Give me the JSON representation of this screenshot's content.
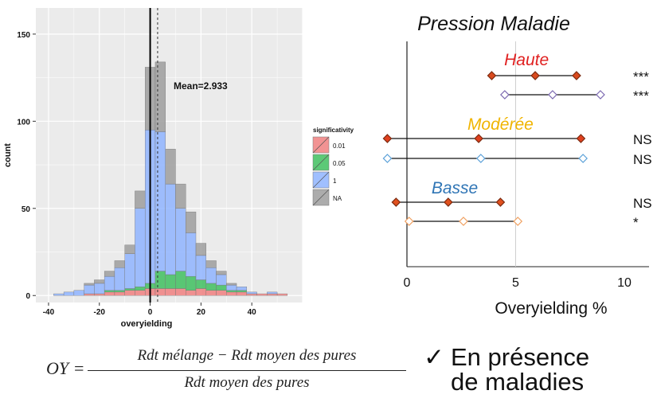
{
  "chart_data": [
    {
      "type": "histogram",
      "xlabel": "overyielding",
      "ylabel": "count",
      "xlim": [
        -45,
        60
      ],
      "ylim": [
        -4,
        165
      ],
      "x_ticks": [
        -40,
        -20,
        0,
        20,
        40
      ],
      "y_ticks": [
        0,
        50,
        100,
        150
      ],
      "grid": true,
      "legend": {
        "title": "significativity",
        "position": "right",
        "entries": [
          "0.01",
          "0.05",
          "1",
          "NA"
        ]
      },
      "annotation": "Mean=2.933",
      "mean": 2.933,
      "bin_width": 4,
      "bin_left_edges": [
        -38,
        -34,
        -30,
        -26,
        -22,
        -18,
        -14,
        -10,
        -6,
        -2,
        2,
        6,
        10,
        14,
        18,
        22,
        26,
        30,
        34,
        38,
        42,
        46,
        50
      ],
      "series": [
        {
          "name": "0.01",
          "color": "#f08080",
          "values": [
            0,
            0,
            0,
            1,
            1,
            2,
            2,
            3,
            3,
            4,
            4,
            4,
            4,
            3,
            4,
            3,
            3,
            2,
            2,
            1,
            1,
            1,
            1
          ]
        },
        {
          "name": "0.05",
          "color": "#3fbf5f",
          "values": [
            0,
            0,
            0,
            0,
            0,
            1,
            1,
            1,
            2,
            3,
            10,
            8,
            10,
            8,
            5,
            4,
            3,
            1,
            1,
            0,
            0,
            0,
            0
          ]
        },
        {
          "name": "1",
          "color": "#8fb4ff",
          "values": [
            1,
            2,
            3,
            5,
            6,
            8,
            13,
            20,
            45,
            88,
            80,
            52,
            36,
            25,
            14,
            9,
            6,
            3,
            2,
            1,
            0,
            1,
            0
          ]
        },
        {
          "name": "NA",
          "color": "#9e9e9e",
          "values": [
            0,
            0,
            0,
            1,
            2,
            3,
            4,
            5,
            10,
            36,
            40,
            20,
            14,
            12,
            7,
            4,
            2,
            1,
            0,
            0,
            0,
            0,
            0
          ]
        }
      ]
    },
    {
      "type": "forest",
      "title": "Pression Maladie",
      "xlabel": "Overyielding %",
      "xlim": [
        -1.2,
        10.6
      ],
      "x_ticks": [
        0,
        5,
        10
      ],
      "groups": [
        {
          "label": "Haute",
          "color": "#e02020",
          "label_x": 5.5
        },
        {
          "label": "Modérée",
          "color": "#f0b400",
          "label_x": 4.3
        },
        {
          "label": "Basse",
          "color": "#2f75b5",
          "label_x": 2.2
        }
      ],
      "rows": [
        {
          "group": "Haute",
          "filled": true,
          "low": 3.9,
          "mid": 5.9,
          "high": 7.8,
          "sig": "***",
          "color": "#d94a1e"
        },
        {
          "group": "Haute",
          "filled": false,
          "low": 4.5,
          "mid": 6.7,
          "high": 8.9,
          "sig": "***",
          "color": "#7b68b0"
        },
        {
          "group": "Modérée",
          "filled": true,
          "low": -0.9,
          "mid": 3.3,
          "high": 8.0,
          "sig": "NS",
          "color": "#e0401e"
        },
        {
          "group": "Modérée",
          "filled": false,
          "low": -0.9,
          "mid": 3.4,
          "high": 8.1,
          "sig": "NS",
          "color": "#5aa0d8"
        },
        {
          "group": "Basse",
          "filled": true,
          "low": -0.5,
          "mid": 1.9,
          "high": 4.3,
          "sig": "NS",
          "color": "#e0501e"
        },
        {
          "group": "Basse",
          "filled": false,
          "low": 0.1,
          "mid": 2.6,
          "high": 5.1,
          "sig": "*",
          "color": "#f0a060"
        }
      ]
    }
  ],
  "formula": {
    "lhs": "OY =",
    "numerator": "Rdt mélange  − Rdt moyen des pures",
    "denominator": "Rdt moyen des pures"
  },
  "conclusion": {
    "check": "✓",
    "line1": "En présence",
    "line2": "de maladies"
  }
}
